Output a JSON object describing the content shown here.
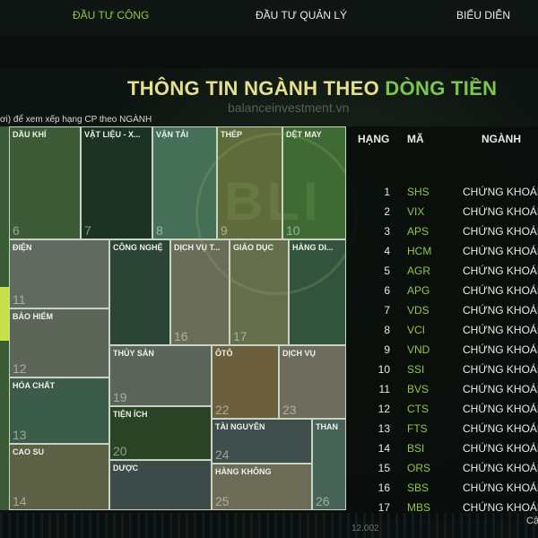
{
  "nav": {
    "items": [
      "ĐẦU TƯ CÔNG",
      "ĐẦU TƯ QUẢN LÝ",
      "BIỂU DIỄN"
    ]
  },
  "header": {
    "title_part1": "THÔNG TIN ",
    "title_part2": "NGÀNH THEO ",
    "title_part3": "DÒNG TIỀN",
    "watermark": "balanceinvestment.vn",
    "hint": "ơi) để xem xếp hạng CP theo NGÀNH"
  },
  "treemap": {
    "tiles": [
      {
        "name": "DẦU KHÍ",
        "num": "6",
        "color": "#3d5b36"
      },
      {
        "name": "VẬT LIỆU - X...",
        "num": "7",
        "color": "#1c3323"
      },
      {
        "name": "VẬN TẢI",
        "num": "8",
        "color": "#466f58"
      },
      {
        "name": "THÉP",
        "num": "9",
        "color": "#5f6b3a"
      },
      {
        "name": "DỆT MAY",
        "num": "10",
        "color": "#3f6a34"
      },
      {
        "name": "ĐIỆN",
        "num": "11",
        "color": "#616a5e"
      },
      {
        "name": "CÔNG NGHỆ",
        "num": "",
        "color": "#2c4436"
      },
      {
        "name": "DỊCH VỤ T...",
        "num": "16",
        "color": "#6a6d57"
      },
      {
        "name": "GIÁO DỤC",
        "num": "17",
        "color": "#666d4b"
      },
      {
        "name": "HÀNG DI...",
        "num": "",
        "color": "#33543c"
      },
      {
        "name": "BẢO HIỂM",
        "num": "12",
        "color": "#5d6558"
      },
      {
        "name": "THỦY SẢN",
        "num": "19",
        "color": "#5b6459"
      },
      {
        "name": "ÔTÔ",
        "num": "22",
        "color": "#6c5f3e"
      },
      {
        "name": "DỊCH VỤ",
        "num": "23",
        "color": "#6e6d5d"
      },
      {
        "name": "HÓA CHẤT",
        "num": "13",
        "color": "#3b5c4a"
      },
      {
        "name": "TIỆN ÍCH",
        "num": "20",
        "color": "#2a4324"
      },
      {
        "name": "TÀI NGUYÊN",
        "num": "24",
        "color": "#3f4e4b"
      },
      {
        "name": "THAN",
        "num": "26",
        "color": "#476256"
      },
      {
        "name": "CAO SU",
        "num": "14",
        "color": "#5c6044"
      },
      {
        "name": "DƯỢC",
        "num": "",
        "color": "#3c4b48"
      },
      {
        "name": "HÀNG KHÔNG",
        "num": "25",
        "color": "#6c6b55"
      }
    ]
  },
  "table": {
    "headers": {
      "rank": "HẠNG",
      "code": "MÃ",
      "sector": "NGÀNH"
    },
    "rows": [
      {
        "rank": "1",
        "code": "SHS",
        "sector": "CHỨNG KHOÁN"
      },
      {
        "rank": "2",
        "code": "VIX",
        "sector": "CHỨNG KHOÁN"
      },
      {
        "rank": "3",
        "code": "APS",
        "sector": "CHỨNG KHOÁN"
      },
      {
        "rank": "4",
        "code": "HCM",
        "sector": "CHỨNG KHOÁN"
      },
      {
        "rank": "5",
        "code": "AGR",
        "sector": "CHỨNG KHOÁN"
      },
      {
        "rank": "6",
        "code": "APG",
        "sector": "CHỨNG KHOÁN"
      },
      {
        "rank": "7",
        "code": "VDS",
        "sector": "CHỨNG KHOÁN"
      },
      {
        "rank": "8",
        "code": "VCI",
        "sector": "CHỨNG KHOÁN"
      },
      {
        "rank": "9",
        "code": "VND",
        "sector": "CHỨNG KHOÁN"
      },
      {
        "rank": "10",
        "code": "SSI",
        "sector": "CHỨNG KHOÁN"
      },
      {
        "rank": "11",
        "code": "BVS",
        "sector": "CHỨNG KHOÁN"
      },
      {
        "rank": "12",
        "code": "CTS",
        "sector": "CHỨNG KHOÁN"
      },
      {
        "rank": "13",
        "code": "FTS",
        "sector": "CHỨNG KHOÁN"
      },
      {
        "rank": "14",
        "code": "BSI",
        "sector": "CHỨNG KHOÁN"
      },
      {
        "rank": "15",
        "code": "ORS",
        "sector": "CHỨNG KHOÁN"
      },
      {
        "rank": "16",
        "code": "SBS",
        "sector": "CHỨNG KHOÁN"
      },
      {
        "rank": "17",
        "code": "MBS",
        "sector": "CHỨNG KHOÁN"
      }
    ]
  },
  "footer": {
    "cut_text": "Cậ",
    "axis_number": "12.002"
  },
  "colors": {
    "accent_green": "#8fc64a",
    "title_yellow": "#e6e08a",
    "title_green": "#7dc64c"
  }
}
